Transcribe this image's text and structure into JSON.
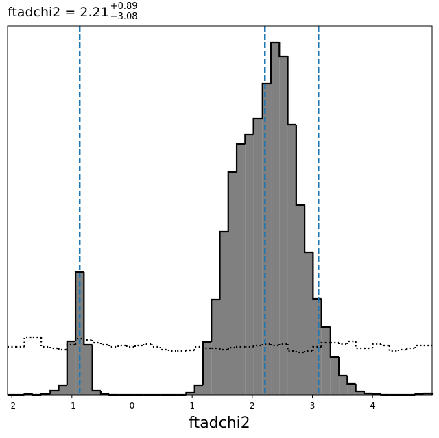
{
  "chart_data": {
    "type": "histogram",
    "title": {
      "text": "ftadchi2 = 2.21",
      "upper": "+0.89",
      "lower": "−3.08"
    },
    "xlabel": "ftadchi2",
    "bins": [
      -2.07,
      -1.93,
      -1.79,
      -1.65,
      -1.51,
      -1.36,
      -1.22,
      -1.08,
      -0.94,
      -0.8,
      -0.66,
      -0.52,
      -0.38,
      -0.23,
      -0.09,
      0.05,
      0.19,
      0.33,
      0.47,
      0.61,
      0.75,
      0.9,
      1.04,
      1.18,
      1.32,
      1.46,
      1.6,
      1.74,
      1.88,
      2.02,
      2.17,
      2.31,
      2.45,
      2.59,
      2.73,
      2.87,
      3.01,
      3.15,
      3.3,
      3.44,
      3.58,
      3.72,
      3.86,
      4.0,
      4.14,
      4.28,
      4.43,
      4.57,
      4.71,
      4.85,
      4.99
    ],
    "counts": [
      0,
      0,
      1,
      0,
      1,
      6,
      14,
      78,
      179,
      73,
      6,
      1,
      0,
      0,
      0,
      0,
      0,
      0,
      0,
      0,
      0,
      3,
      14,
      77,
      139,
      238,
      325,
      366,
      380,
      403,
      454,
      514,
      494,
      394,
      277,
      208,
      140,
      99,
      55,
      28,
      16,
      5,
      2,
      1,
      0,
      0,
      0,
      0,
      1,
      2
    ],
    "color": "#808080",
    "edgecolor": "#000000",
    "prior_values": [
      70,
      70,
      84,
      84,
      70,
      68,
      66,
      73,
      82,
      80,
      76,
      73,
      70,
      72,
      70,
      72,
      74,
      70,
      66,
      64,
      64,
      65,
      70,
      68,
      68,
      66,
      69,
      70,
      70,
      72,
      74,
      72,
      74,
      64,
      62,
      64,
      70,
      76,
      76,
      74,
      78,
      68,
      68,
      74,
      72,
      64,
      66,
      68,
      72,
      72
    ],
    "prior_color": "#000000",
    "vlines": [
      -0.87,
      2.21,
      3.1
    ],
    "vline_color": "#1f77b4",
    "xlim": [
      -2.07,
      4.99
    ],
    "ylim": [
      0,
      538
    ],
    "xticks": [
      -2,
      -1,
      0,
      1,
      2,
      3,
      4
    ]
  }
}
